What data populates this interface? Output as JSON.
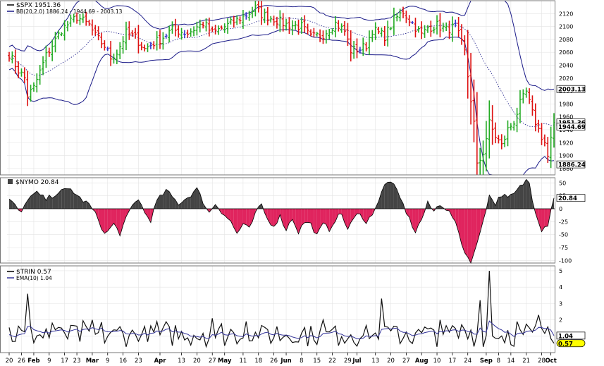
{
  "chart_data": [
    {
      "type": "bar",
      "style": "ohlc",
      "legend": {
        "label": "$SPX 1951.36",
        "sub_label": "BB(20,2.0) 1886.24 - 1944.69 - 2003.13",
        "placement": "top-left"
      },
      "ylim": [
        1870,
        2140
      ],
      "yticks": [
        1880,
        1900,
        1920,
        1940,
        1960,
        1980,
        2000,
        2020,
        2040,
        2060,
        2080,
        2100,
        2120
      ],
      "value_tags": [
        {
          "label": "2003.13",
          "value": 2003.13,
          "color": "#ffffff"
        },
        {
          "label": "1951.36",
          "value": 1951.36,
          "color": "#ffffff"
        },
        {
          "label": "1944.69",
          "value": 1944.69,
          "color": "#ffffff"
        },
        {
          "label": "1886.24",
          "value": 1886.24,
          "color": "#ffffff"
        }
      ],
      "colors": {
        "up": "#22aa22",
        "down": "#dd1111",
        "neutral": "#3333cc",
        "band": "#1a1a88"
      },
      "grid": true
    },
    {
      "type": "area",
      "legend": {
        "label": "$NYMO 20.84",
        "placement": "top-left"
      },
      "ylim": [
        -105,
        60
      ],
      "yticks": [
        50,
        25,
        0,
        -25,
        -50,
        -75,
        -100
      ],
      "value_tags": [
        {
          "label": "20.84",
          "value": 20.84,
          "color": "#ffffff"
        }
      ],
      "colors": {
        "positive": "#444444",
        "negative": "#e0245e"
      },
      "grid": true
    },
    {
      "type": "line",
      "legend": {
        "label": "$TRIN 0.57",
        "sub_label": "EMA(10) 1.04",
        "placement": "top-left"
      },
      "ylim": [
        0,
        5.3
      ],
      "yticks": [
        1,
        2,
        3,
        4,
        5
      ],
      "value_tags": [
        {
          "label": "1.04",
          "value": 1.04,
          "color": "#ffffff"
        },
        {
          "label": "0.57",
          "value": 0.57,
          "color": "#ffff00"
        }
      ],
      "colors": {
        "line": "#111111",
        "ema": "#333399"
      },
      "grid": true
    }
  ],
  "x_axis": {
    "ticks": [
      {
        "label": "20",
        "bar": 0
      },
      {
        "label": "26",
        "bar": 4
      },
      {
        "label": "Feb",
        "bar": 8
      },
      {
        "label": "9",
        "bar": 13
      },
      {
        "label": "17",
        "bar": 18
      },
      {
        "label": "23",
        "bar": 22
      },
      {
        "label": "Mar",
        "bar": 27
      },
      {
        "label": "9",
        "bar": 32
      },
      {
        "label": "16",
        "bar": 37
      },
      {
        "label": "23",
        "bar": 42
      },
      {
        "label": "Apr",
        "bar": 49
      },
      {
        "label": "13",
        "bar": 56
      },
      {
        "label": "20",
        "bar": 61
      },
      {
        "label": "27",
        "bar": 66
      },
      {
        "label": "May",
        "bar": 70
      },
      {
        "label": "11",
        "bar": 76
      },
      {
        "label": "18",
        "bar": 81
      },
      {
        "label": "26",
        "bar": 86
      },
      {
        "label": "Jun",
        "bar": 90
      },
      {
        "label": "8",
        "bar": 95
      },
      {
        "label": "15",
        "bar": 100
      },
      {
        "label": "22",
        "bar": 105
      },
      {
        "label": "29",
        "bar": 110
      },
      {
        "label": "Jul",
        "bar": 113
      },
      {
        "label": "13",
        "bar": 119
      },
      {
        "label": "20",
        "bar": 124
      },
      {
        "label": "27",
        "bar": 129
      },
      {
        "label": "Aug",
        "bar": 134
      },
      {
        "label": "10",
        "bar": 139
      },
      {
        "label": "17",
        "bar": 144
      },
      {
        "label": "24",
        "bar": 149
      },
      {
        "label": "Sep",
        "bar": 155
      },
      {
        "label": "8",
        "bar": 159
      },
      {
        "label": "14",
        "bar": 163
      },
      {
        "label": "21",
        "bar": 168
      },
      {
        "label": "28",
        "bar": 173
      },
      {
        "label": "Oct",
        "bar": 176
      }
    ]
  }
}
